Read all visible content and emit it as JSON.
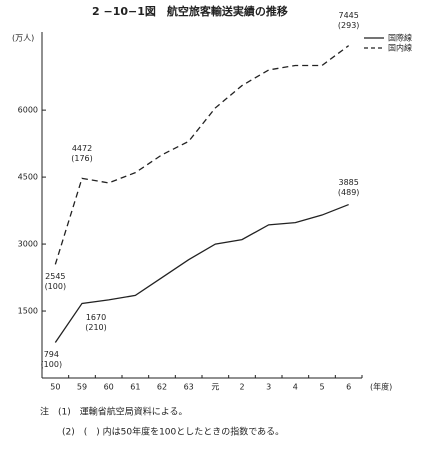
{
  "chart_data": {
    "type": "line",
    "title": "2 −10−1図　航空旅客輸送実績の推移",
    "y_label": "(万人)",
    "x_label": "(年度)",
    "categories": [
      "50",
      "59",
      "60",
      "61",
      "62",
      "63",
      "元",
      "2",
      "3",
      "4",
      "5",
      "6"
    ],
    "ylim": [
      0,
      7750
    ],
    "yticks": [
      1500,
      3000,
      4500,
      6000
    ],
    "series": [
      {
        "name": "国際線",
        "color": "#222",
        "dash": false,
        "values": [
          794,
          1670,
          1750,
          1850,
          2250,
          2650,
          3000,
          3100,
          3430,
          3480,
          3650,
          3885
        ],
        "value_labels": [
          "794",
          "1670",
          null,
          null,
          null,
          null,
          null,
          null,
          null,
          null,
          null,
          "3885"
        ],
        "index_labels": [
          "(100)",
          "(210)",
          null,
          null,
          null,
          null,
          null,
          null,
          null,
          null,
          null,
          "(489)"
        ]
      },
      {
        "name": "国内線",
        "color": "#222",
        "dash": true,
        "values": [
          2545,
          4472,
          4370,
          4600,
          5000,
          5300,
          6050,
          6550,
          6900,
          7000,
          7000,
          7445
        ],
        "value_labels": [
          "2545",
          "4472",
          null,
          null,
          null,
          null,
          null,
          null,
          null,
          null,
          null,
          "7445"
        ],
        "index_labels": [
          "(100)",
          "(176)",
          null,
          null,
          null,
          null,
          null,
          null,
          null,
          null,
          null,
          "(293)"
        ]
      }
    ],
    "legend": "upper right",
    "notes": [
      "注　(1)　運輸省航空局資料による。",
      "(2)　(　) 内は50年度を100としたときの指数である。"
    ]
  }
}
